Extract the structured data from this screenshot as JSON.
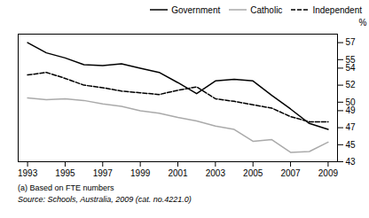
{
  "chart_data": {
    "type": "line",
    "x": [
      1993,
      1994,
      1995,
      1996,
      1997,
      1998,
      1999,
      2000,
      2001,
      2002,
      2003,
      2004,
      2005,
      2006,
      2007,
      2008,
      2009
    ],
    "series": [
      {
        "name": "Government",
        "color": "#000000",
        "line_style": "solid",
        "values": [
          57.0,
          55.8,
          55.2,
          54.4,
          54.3,
          54.5,
          54.0,
          53.5,
          52.3,
          51.0,
          52.5,
          52.7,
          52.5,
          50.8,
          49.2,
          47.5,
          46.8
        ]
      },
      {
        "name": "Catholic",
        "color": "#aaaaaa",
        "line_style": "solid",
        "values": [
          50.5,
          50.3,
          50.4,
          50.2,
          49.8,
          49.5,
          49.0,
          48.7,
          48.2,
          47.8,
          47.2,
          46.8,
          45.4,
          45.6,
          44.1,
          44.2,
          45.3
        ]
      },
      {
        "name": "Independent",
        "color": "#000000",
        "line_style": "dashed",
        "values": [
          53.2,
          53.5,
          52.8,
          52.0,
          51.7,
          51.3,
          51.1,
          50.9,
          51.4,
          51.8,
          50.4,
          50.1,
          49.7,
          49.3,
          48.3,
          47.7,
          47.7
        ]
      }
    ],
    "ylabel": "%",
    "xlim": [
      1992.5,
      2009.5
    ],
    "xticks": [
      1993,
      1995,
      1997,
      1999,
      2001,
      2003,
      2005,
      2007,
      2009
    ],
    "ylim": [
      43,
      58
    ],
    "yticks": [
      43,
      45,
      47,
      49,
      50,
      52,
      54,
      55,
      57
    ],
    "grid": false,
    "legend": "upper right",
    "footnotes": [
      "(a) Based on FTE numbers",
      "Source: Schools, Australia, 2009 (cat. no.4221.0)"
    ]
  }
}
